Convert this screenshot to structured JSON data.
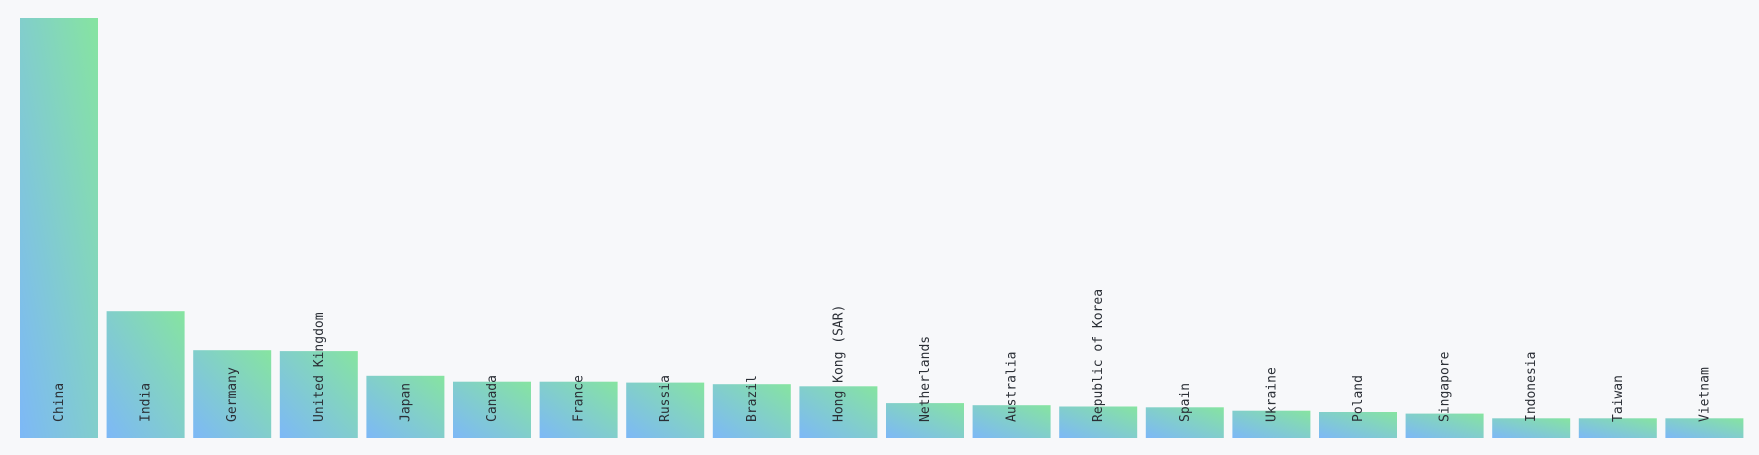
{
  "chart_data": {
    "type": "bar",
    "title": "",
    "xlabel": "",
    "ylabel": "",
    "ylim": [
      0,
      100
    ],
    "categories": [
      "China",
      "India",
      "Germany",
      "United Kingdom",
      "Japan",
      "Canada",
      "France",
      "Russia",
      "Brazil",
      "Hong Kong (SAR)",
      "Netherlands",
      "Australia",
      "Republic of Korea",
      "Spain",
      "Ukraine",
      "Poland",
      "Singapore",
      "Indonesia",
      "Taiwan",
      "Vietnam"
    ],
    "values": [
      100,
      30.2,
      20.9,
      20.7,
      14.8,
      13.4,
      13.4,
      13.2,
      12.8,
      12.3,
      8.3,
      7.8,
      7.5,
      7.3,
      6.5,
      6.2,
      5.8,
      4.7,
      4.7,
      4.7
    ],
    "grid": false,
    "legend": "none",
    "colors": {
      "gradient_start": "#7db8f7",
      "gradient_end": "#86e4a0",
      "label": "#2b2f36",
      "background": "#f7f8fa"
    }
  }
}
